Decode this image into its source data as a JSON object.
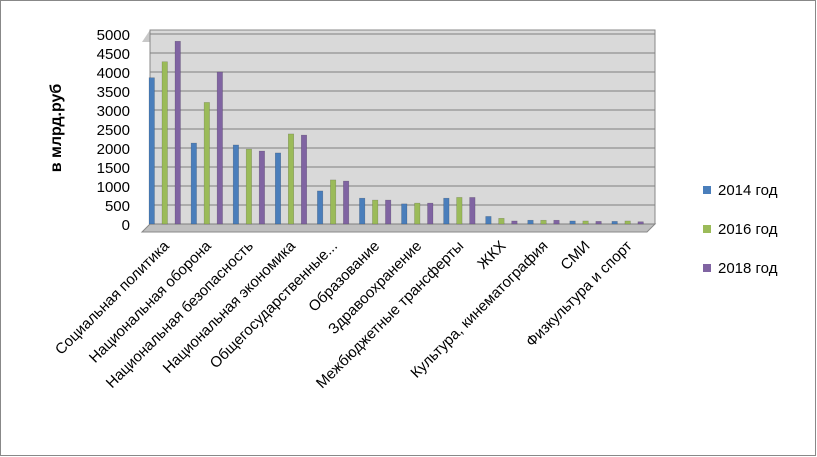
{
  "chart_data": {
    "type": "bar",
    "y_label": "в млрд.руб",
    "categories": [
      "Социальная политика",
      "Национальная оборона",
      "Национальная безопасность",
      "Национальная экономика",
      "Общегосударственные...",
      "Образование",
      "Здравоохранение",
      "Межбюджетные трансферты",
      "ЖКХ",
      "Культура, кинематография",
      "СМИ",
      "Физкультура и спорт"
    ],
    "series": [
      {
        "name": "2014 год",
        "color": "#4a7ebb",
        "values": [
          3850,
          2130,
          2080,
          1870,
          870,
          680,
          530,
          680,
          200,
          100,
          80,
          70
        ]
      },
      {
        "name": "2016 год",
        "color": "#9bbb59",
        "values": [
          4270,
          3200,
          1970,
          2370,
          1160,
          630,
          550,
          700,
          150,
          100,
          80,
          80
        ]
      },
      {
        "name": "2018 год",
        "color": "#8064a2",
        "values": [
          4810,
          4000,
          1920,
          2340,
          1130,
          630,
          550,
          700,
          80,
          100,
          70,
          60
        ]
      }
    ],
    "ylim": [
      0,
      5000
    ],
    "yticks": [
      0,
      500,
      1000,
      1500,
      2000,
      2500,
      3000,
      3500,
      4000,
      4500,
      5000
    ],
    "grid": true,
    "legend": "right"
  }
}
